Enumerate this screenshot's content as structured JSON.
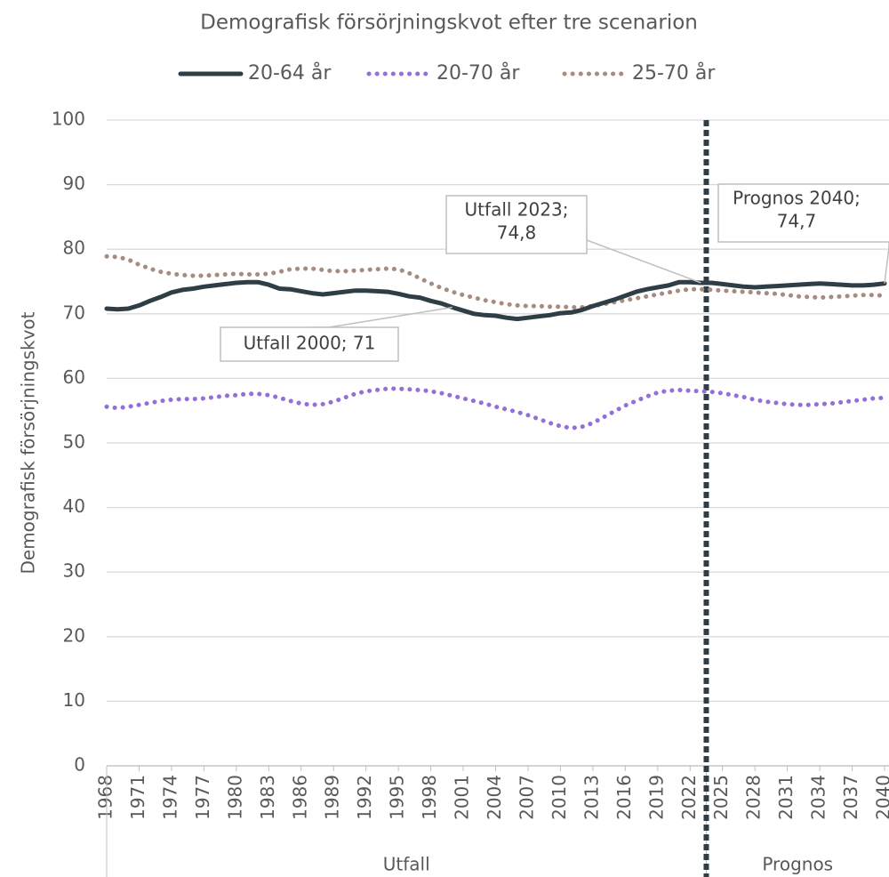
{
  "chart_data": {
    "type": "line",
    "title": "Demografisk försörjningskvot efter tre scenarion",
    "y_label": "Demografisk försörjningskvot",
    "x": [
      1968,
      1969,
      1970,
      1971,
      1972,
      1973,
      1974,
      1975,
      1976,
      1977,
      1978,
      1979,
      1980,
      1981,
      1982,
      1983,
      1984,
      1985,
      1986,
      1987,
      1988,
      1989,
      1990,
      1991,
      1992,
      1993,
      1994,
      1995,
      1996,
      1997,
      1998,
      1999,
      2000,
      2001,
      2002,
      2003,
      2004,
      2005,
      2006,
      2007,
      2008,
      2009,
      2010,
      2011,
      2012,
      2013,
      2014,
      2015,
      2016,
      2017,
      2018,
      2019,
      2020,
      2021,
      2022,
      2023,
      2024,
      2025,
      2026,
      2027,
      2028,
      2029,
      2030,
      2031,
      2032,
      2033,
      2034,
      2035,
      2036,
      2037,
      2038,
      2039,
      2040
    ],
    "xlim": [
      1968,
      2040
    ],
    "xticks": [
      1968,
      1971,
      1974,
      1977,
      1980,
      1983,
      1986,
      1989,
      1992,
      1995,
      1998,
      2001,
      2004,
      2007,
      2010,
      2013,
      2016,
      2019,
      2022,
      2025,
      2028,
      2031,
      2034,
      2037,
      2040
    ],
    "ylim": [
      0,
      100
    ],
    "yticks": [
      0,
      10,
      20,
      30,
      40,
      50,
      60,
      70,
      80,
      90,
      100
    ],
    "grid": true,
    "legend": "top",
    "groups": [
      {
        "label": "Utfall",
        "from": 1968,
        "to": 2023
      },
      {
        "label": "Prognos",
        "from": 2024,
        "to": 2040
      }
    ],
    "series": [
      {
        "name": "20-64 år",
        "color": "#2f3e46",
        "style": "solid",
        "values": [
          70.8,
          70.7,
          70.8,
          71.3,
          72.0,
          72.6,
          73.3,
          73.7,
          73.9,
          74.2,
          74.4,
          74.6,
          74.8,
          74.9,
          74.9,
          74.5,
          73.9,
          73.8,
          73.5,
          73.2,
          73.0,
          73.2,
          73.4,
          73.6,
          73.6,
          73.5,
          73.4,
          73.1,
          72.7,
          72.5,
          72.0,
          71.6,
          71.0,
          70.5,
          70.0,
          69.8,
          69.7,
          69.4,
          69.2,
          69.4,
          69.6,
          69.8,
          70.1,
          70.2,
          70.6,
          71.2,
          71.7,
          72.2,
          72.8,
          73.4,
          73.8,
          74.1,
          74.4,
          74.9,
          74.9,
          74.8,
          74.8,
          74.6,
          74.4,
          74.2,
          74.1,
          74.2,
          74.3,
          74.4,
          74.5,
          74.6,
          74.7,
          74.6,
          74.5,
          74.4,
          74.4,
          74.5,
          74.7
        ]
      },
      {
        "name": "20-70 år",
        "color": "#9370d8",
        "style": "dotted",
        "values": [
          55.6,
          55.4,
          55.6,
          55.9,
          56.2,
          56.5,
          56.7,
          56.8,
          56.8,
          56.9,
          57.1,
          57.3,
          57.4,
          57.6,
          57.6,
          57.4,
          57.0,
          56.5,
          56.1,
          55.9,
          56.0,
          56.4,
          57.0,
          57.6,
          58.0,
          58.2,
          58.4,
          58.4,
          58.3,
          58.2,
          58.0,
          57.7,
          57.3,
          56.9,
          56.5,
          56.1,
          55.6,
          55.2,
          54.8,
          54.3,
          53.7,
          53.1,
          52.6,
          52.3,
          52.5,
          53.1,
          54.0,
          54.9,
          55.8,
          56.5,
          57.2,
          57.8,
          58.1,
          58.2,
          58.1,
          58.0,
          57.9,
          57.7,
          57.4,
          57.1,
          56.7,
          56.4,
          56.2,
          56.0,
          55.9,
          55.9,
          56.0,
          56.1,
          56.3,
          56.5,
          56.7,
          56.9,
          57.0
        ]
      },
      {
        "name": "25-70 år",
        "color": "#a68b7e",
        "style": "dotted",
        "values": [
          78.9,
          78.8,
          78.4,
          77.6,
          77.0,
          76.5,
          76.2,
          76.0,
          75.9,
          75.9,
          76.0,
          76.1,
          76.2,
          76.1,
          76.1,
          76.2,
          76.5,
          76.9,
          77.0,
          77.0,
          76.8,
          76.6,
          76.6,
          76.7,
          76.8,
          76.9,
          77.0,
          76.9,
          76.3,
          75.5,
          74.7,
          74.0,
          73.4,
          72.9,
          72.5,
          72.1,
          71.8,
          71.5,
          71.3,
          71.2,
          71.2,
          71.1,
          71.1,
          71.0,
          71.0,
          71.2,
          71.5,
          71.8,
          72.1,
          72.4,
          72.7,
          73.0,
          73.3,
          73.6,
          73.8,
          73.8,
          73.7,
          73.6,
          73.5,
          73.4,
          73.3,
          73.2,
          73.1,
          72.9,
          72.7,
          72.6,
          72.5,
          72.6,
          72.7,
          72.8,
          72.9,
          72.9,
          72.8
        ]
      }
    ],
    "annotations": [
      {
        "lines": [
          "Utfall 2023;",
          "74,8"
        ],
        "x": 2023,
        "y": 74.8
      },
      {
        "lines": [
          "Utfall 2000; 71"
        ],
        "x": 2000,
        "y": 71
      },
      {
        "lines": [
          "Prognos 2040;",
          "74,7"
        ],
        "x": 2040,
        "y": 74.7
      }
    ]
  }
}
